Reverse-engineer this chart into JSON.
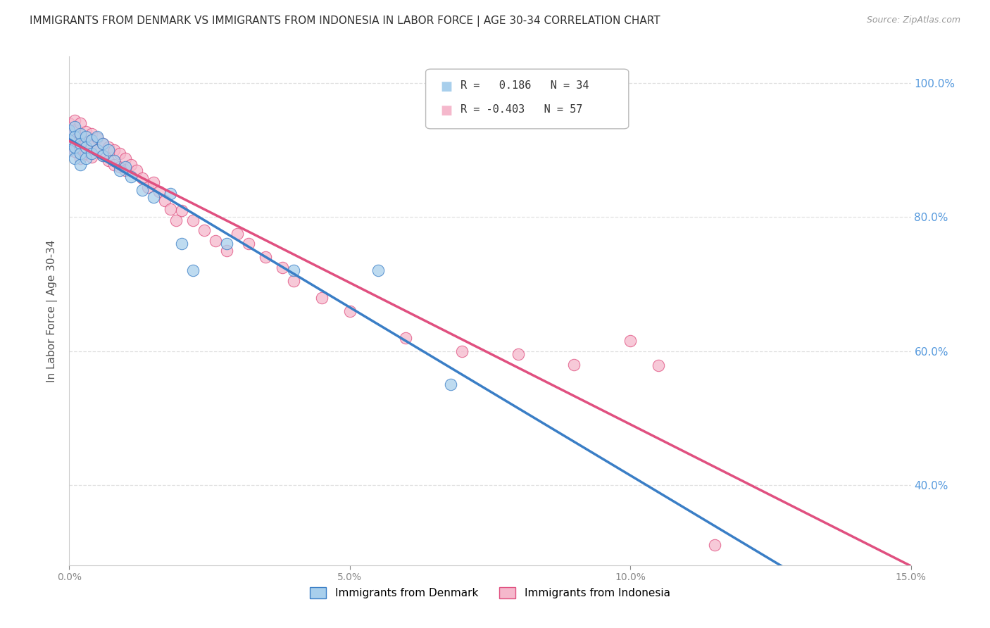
{
  "title": "IMMIGRANTS FROM DENMARK VS IMMIGRANTS FROM INDONESIA IN LABOR FORCE | AGE 30-34 CORRELATION CHART",
  "source": "Source: ZipAtlas.com",
  "ylabel_label": "In Labor Force | Age 30-34",
  "xmin": 0.0,
  "xmax": 0.15,
  "ymin": 0.28,
  "ymax": 1.04,
  "legend_denmark": "Immigrants from Denmark",
  "legend_indonesia": "Immigrants from Indonesia",
  "R_denmark": 0.186,
  "N_denmark": 34,
  "R_indonesia": -0.403,
  "N_indonesia": 57,
  "color_denmark": "#a8cfec",
  "color_indonesia": "#f5b8cc",
  "line_color_denmark": "#3a7ec6",
  "line_color_indonesia": "#e05080",
  "dk_x": [
    0.0,
    0.0,
    0.0,
    0.001,
    0.001,
    0.001,
    0.001,
    0.002,
    0.002,
    0.002,
    0.002,
    0.003,
    0.003,
    0.003,
    0.004,
    0.004,
    0.005,
    0.005,
    0.006,
    0.006,
    0.007,
    0.008,
    0.009,
    0.01,
    0.011,
    0.013,
    0.015,
    0.018,
    0.02,
    0.022,
    0.028,
    0.04,
    0.055,
    0.068
  ],
  "dk_y": [
    0.93,
    0.915,
    0.9,
    0.935,
    0.92,
    0.905,
    0.888,
    0.925,
    0.91,
    0.895,
    0.878,
    0.92,
    0.905,
    0.888,
    0.915,
    0.895,
    0.92,
    0.9,
    0.91,
    0.892,
    0.9,
    0.885,
    0.87,
    0.875,
    0.86,
    0.84,
    0.83,
    0.835,
    0.76,
    0.72,
    0.76,
    0.72,
    0.72,
    0.55
  ],
  "id_x": [
    0.0,
    0.0,
    0.0,
    0.001,
    0.001,
    0.001,
    0.001,
    0.002,
    0.002,
    0.002,
    0.002,
    0.003,
    0.003,
    0.003,
    0.004,
    0.004,
    0.004,
    0.005,
    0.005,
    0.006,
    0.006,
    0.007,
    0.007,
    0.008,
    0.008,
    0.009,
    0.009,
    0.01,
    0.01,
    0.011,
    0.012,
    0.013,
    0.014,
    0.015,
    0.016,
    0.017,
    0.018,
    0.019,
    0.02,
    0.022,
    0.024,
    0.026,
    0.028,
    0.03,
    0.032,
    0.035,
    0.038,
    0.04,
    0.045,
    0.05,
    0.06,
    0.07,
    0.08,
    0.09,
    0.1,
    0.105,
    0.115
  ],
  "id_y": [
    0.94,
    0.925,
    0.91,
    0.945,
    0.93,
    0.915,
    0.898,
    0.94,
    0.922,
    0.905,
    0.888,
    0.928,
    0.912,
    0.895,
    0.925,
    0.908,
    0.89,
    0.918,
    0.9,
    0.91,
    0.892,
    0.905,
    0.885,
    0.9,
    0.878,
    0.895,
    0.875,
    0.888,
    0.87,
    0.878,
    0.87,
    0.858,
    0.845,
    0.852,
    0.838,
    0.825,
    0.812,
    0.795,
    0.81,
    0.795,
    0.78,
    0.765,
    0.75,
    0.775,
    0.76,
    0.74,
    0.725,
    0.705,
    0.68,
    0.66,
    0.62,
    0.6,
    0.595,
    0.58,
    0.615,
    0.578,
    0.31
  ],
  "background_color": "#ffffff",
  "grid_color": "#e0e0e0",
  "yticks": [
    0.4,
    0.6,
    0.8,
    1.0
  ],
  "xticks": [
    0.0,
    0.05,
    0.1,
    0.15
  ]
}
